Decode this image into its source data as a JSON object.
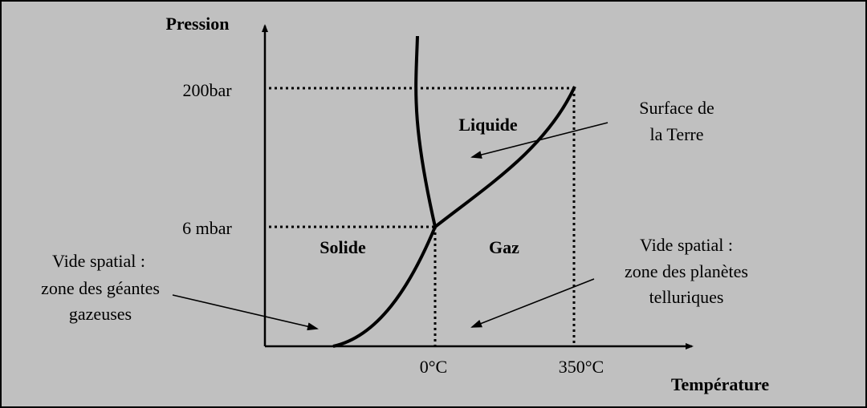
{
  "axes": {
    "y_label": "Pression",
    "x_label": "Température",
    "y_ticks": [
      "200bar",
      "6 mbar"
    ],
    "x_ticks": [
      "0°C",
      "350°C"
    ]
  },
  "regions": {
    "liquid": "Liquide",
    "solid": "Solide",
    "gas": "Gaz"
  },
  "annotations": {
    "earth": [
      "Surface de",
      "la Terre"
    ],
    "telluric": [
      "Vide spatial :",
      "zone des planètes",
      "telluriques"
    ],
    "giants": [
      "Vide spatial :",
      "zone des géantes",
      "gazeuses"
    ]
  }
}
